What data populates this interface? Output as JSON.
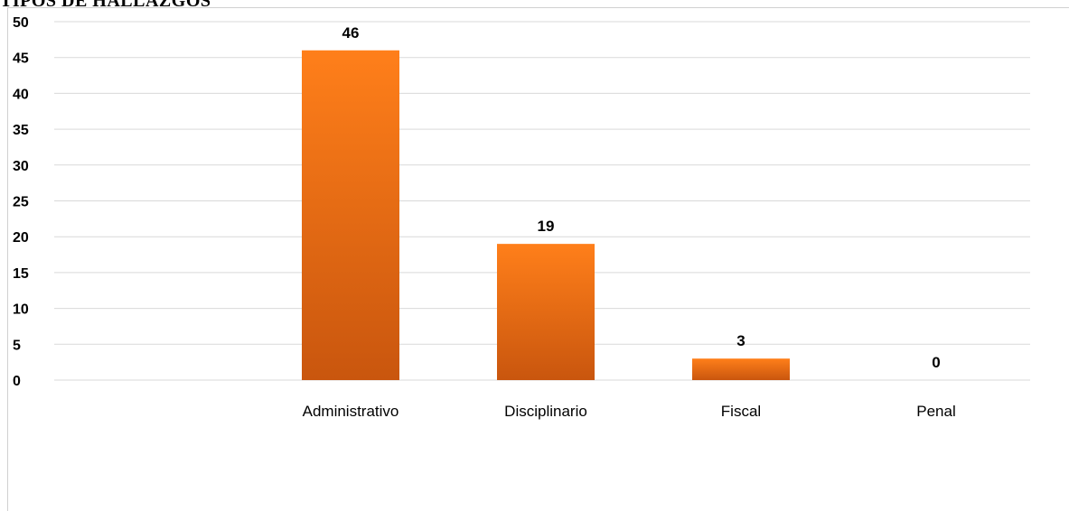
{
  "chart_data": {
    "type": "bar",
    "title": "TIPOS DE HALLAZGOS",
    "categories": [
      "Administrativo",
      "Disciplinario",
      "Fiscal",
      "Penal"
    ],
    "values": [
      46,
      19,
      3,
      0
    ],
    "data_labels": [
      "46",
      "19",
      "3",
      "0"
    ],
    "yticks": [
      "0",
      "5",
      "10",
      "15",
      "20",
      "25",
      "30",
      "35",
      "40",
      "45",
      "50"
    ],
    "ylim": [
      0,
      50
    ],
    "grid": true,
    "legend": "none",
    "bar_color_top": "#ff7f1a",
    "bar_color_bottom": "#c9560e",
    "grid_color": "#d9d9d9"
  }
}
